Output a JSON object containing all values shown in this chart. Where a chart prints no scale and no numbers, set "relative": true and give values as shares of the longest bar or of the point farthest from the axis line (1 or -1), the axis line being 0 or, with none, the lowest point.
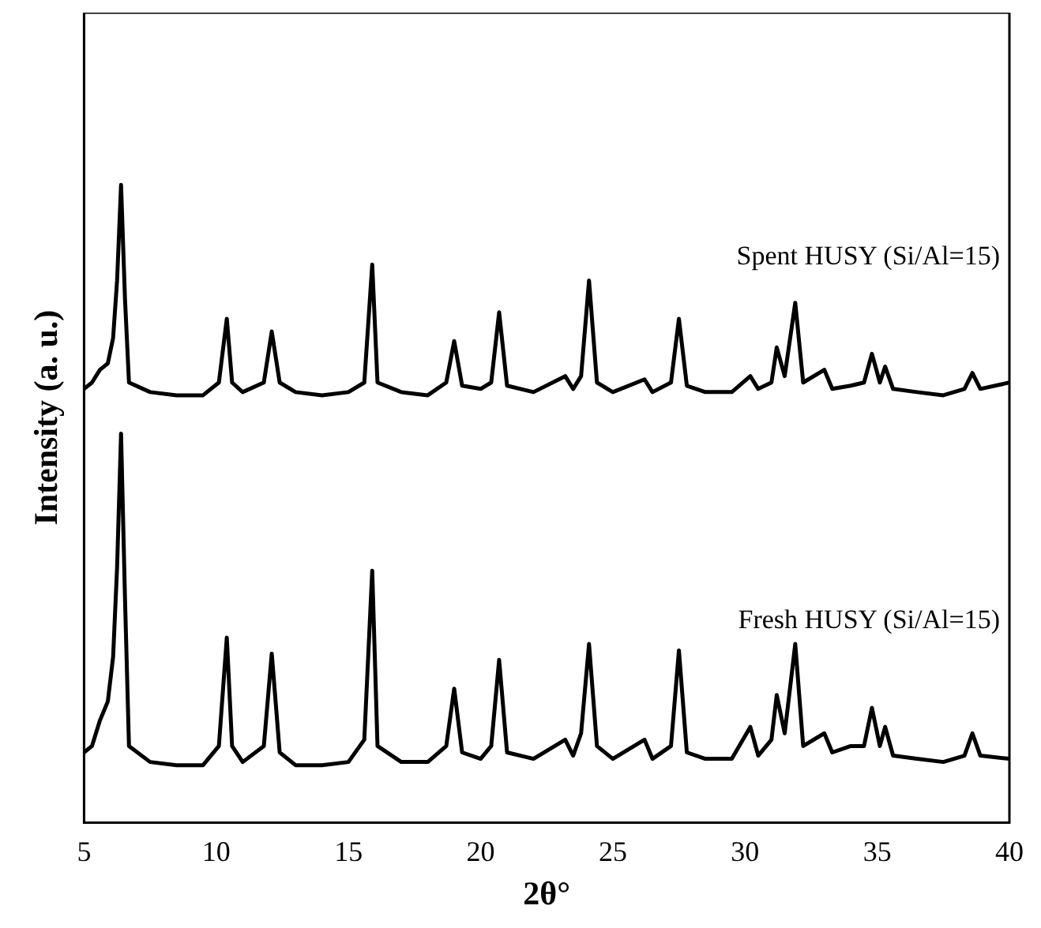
{
  "chart_data": {
    "type": "line",
    "xlabel": "2θ°",
    "ylabel": "Intensity (a. u.)",
    "relative": true,
    "xlim": [
      5,
      40
    ],
    "xticks": [
      5,
      10,
      15,
      20,
      25,
      30,
      35,
      40
    ],
    "tick_labels": "x",
    "grid": false,
    "legend": false,
    "marker": "none",
    "line_style": "solid",
    "series": [
      {
        "name": "Spent HUSY (Si/Al=15)",
        "color": "#000000",
        "x": [
          5.0,
          5.3,
          5.6,
          5.9,
          6.1,
          6.25,
          6.4,
          6.55,
          6.7,
          7.5,
          8.5,
          9.5,
          10.1,
          10.4,
          10.6,
          11.0,
          11.8,
          12.1,
          12.4,
          13.0,
          14.0,
          15.0,
          15.6,
          15.9,
          16.1,
          17.0,
          18.0,
          18.7,
          19.0,
          19.3,
          20.0,
          20.4,
          20.7,
          21.0,
          22.0,
          23.2,
          23.5,
          23.8,
          24.1,
          24.4,
          25.0,
          26.2,
          26.5,
          27.2,
          27.5,
          27.8,
          28.5,
          29.5,
          30.2,
          30.5,
          31.0,
          31.2,
          31.5,
          31.9,
          32.2,
          33.0,
          33.3,
          34.0,
          34.5,
          34.8,
          35.1,
          35.3,
          35.6,
          36.5,
          37.5,
          38.3,
          38.6,
          38.9,
          40.0
        ],
        "values": [
          0.68,
          0.69,
          0.71,
          0.72,
          0.76,
          0.85,
          1.0,
          0.82,
          0.69,
          0.675,
          0.67,
          0.67,
          0.69,
          0.79,
          0.69,
          0.675,
          0.69,
          0.77,
          0.69,
          0.675,
          0.67,
          0.675,
          0.69,
          0.875,
          0.69,
          0.675,
          0.67,
          0.69,
          0.755,
          0.685,
          0.68,
          0.69,
          0.8,
          0.685,
          0.675,
          0.7,
          0.68,
          0.7,
          0.85,
          0.69,
          0.675,
          0.695,
          0.675,
          0.69,
          0.79,
          0.685,
          0.675,
          0.675,
          0.7,
          0.68,
          0.69,
          0.745,
          0.7,
          0.815,
          0.69,
          0.71,
          0.68,
          0.685,
          0.69,
          0.735,
          0.69,
          0.715,
          0.68,
          0.675,
          0.67,
          0.68,
          0.705,
          0.68,
          0.69
        ]
      },
      {
        "name": "Fresh HUSY (Si/Al=15)",
        "color": "#000000",
        "x": [
          5.0,
          5.3,
          5.6,
          5.9,
          6.1,
          6.25,
          6.4,
          6.55,
          6.7,
          7.5,
          8.5,
          9.5,
          10.1,
          10.4,
          10.6,
          11.0,
          11.8,
          12.1,
          12.4,
          13.0,
          14.0,
          15.0,
          15.6,
          15.9,
          16.1,
          17.0,
          18.0,
          18.7,
          19.0,
          19.3,
          20.0,
          20.4,
          20.7,
          21.0,
          22.0,
          23.2,
          23.5,
          23.8,
          24.1,
          24.4,
          25.0,
          26.2,
          26.5,
          27.2,
          27.5,
          27.8,
          28.5,
          29.5,
          30.2,
          30.5,
          31.0,
          31.2,
          31.5,
          31.9,
          32.2,
          33.0,
          33.3,
          34.0,
          34.5,
          34.8,
          35.1,
          35.3,
          35.6,
          36.5,
          37.5,
          38.3,
          38.6,
          38.9,
          40.0
        ],
        "values": [
          0.11,
          0.12,
          0.16,
          0.19,
          0.26,
          0.4,
          0.61,
          0.35,
          0.12,
          0.095,
          0.09,
          0.09,
          0.12,
          0.29,
          0.12,
          0.095,
          0.12,
          0.265,
          0.11,
          0.09,
          0.09,
          0.095,
          0.13,
          0.395,
          0.12,
          0.095,
          0.095,
          0.12,
          0.21,
          0.11,
          0.1,
          0.12,
          0.255,
          0.11,
          0.1,
          0.13,
          0.105,
          0.14,
          0.28,
          0.12,
          0.1,
          0.13,
          0.1,
          0.12,
          0.27,
          0.11,
          0.1,
          0.1,
          0.15,
          0.105,
          0.13,
          0.2,
          0.14,
          0.28,
          0.12,
          0.14,
          0.11,
          0.12,
          0.12,
          0.18,
          0.12,
          0.15,
          0.105,
          0.1,
          0.095,
          0.105,
          0.14,
          0.105,
          0.1
        ]
      }
    ]
  }
}
